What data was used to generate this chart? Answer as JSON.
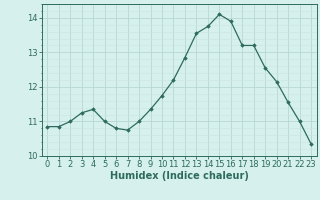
{
  "x": [
    0,
    1,
    2,
    3,
    4,
    5,
    6,
    7,
    8,
    9,
    10,
    11,
    12,
    13,
    14,
    15,
    16,
    17,
    18,
    19,
    20,
    21,
    22,
    23
  ],
  "y": [
    10.85,
    10.85,
    11.0,
    11.25,
    11.35,
    11.0,
    10.8,
    10.75,
    11.0,
    11.35,
    11.75,
    12.2,
    12.85,
    13.55,
    13.75,
    14.1,
    13.9,
    13.2,
    13.2,
    12.55,
    12.15,
    11.55,
    11.0,
    10.35
  ],
  "line_color": "#2e6b5e",
  "marker": "D",
  "marker_size": 1.8,
  "xlabel": "Humidex (Indice chaleur)",
  "xlabel_fontsize": 7,
  "xlabel_weight": "bold",
  "bg_color": "#d6f0ee",
  "grid_major_color": "#b8d8d4",
  "grid_minor_color": "#c8e4e0",
  "ylim": [
    10.0,
    14.4
  ],
  "xlim": [
    -0.5,
    23.5
  ],
  "yticks": [
    10,
    11,
    12,
    13,
    14
  ],
  "xticks": [
    0,
    1,
    2,
    3,
    4,
    5,
    6,
    7,
    8,
    9,
    10,
    11,
    12,
    13,
    14,
    15,
    16,
    17,
    18,
    19,
    20,
    21,
    22,
    23
  ],
  "tick_fontsize": 6.0,
  "linewidth": 0.9
}
